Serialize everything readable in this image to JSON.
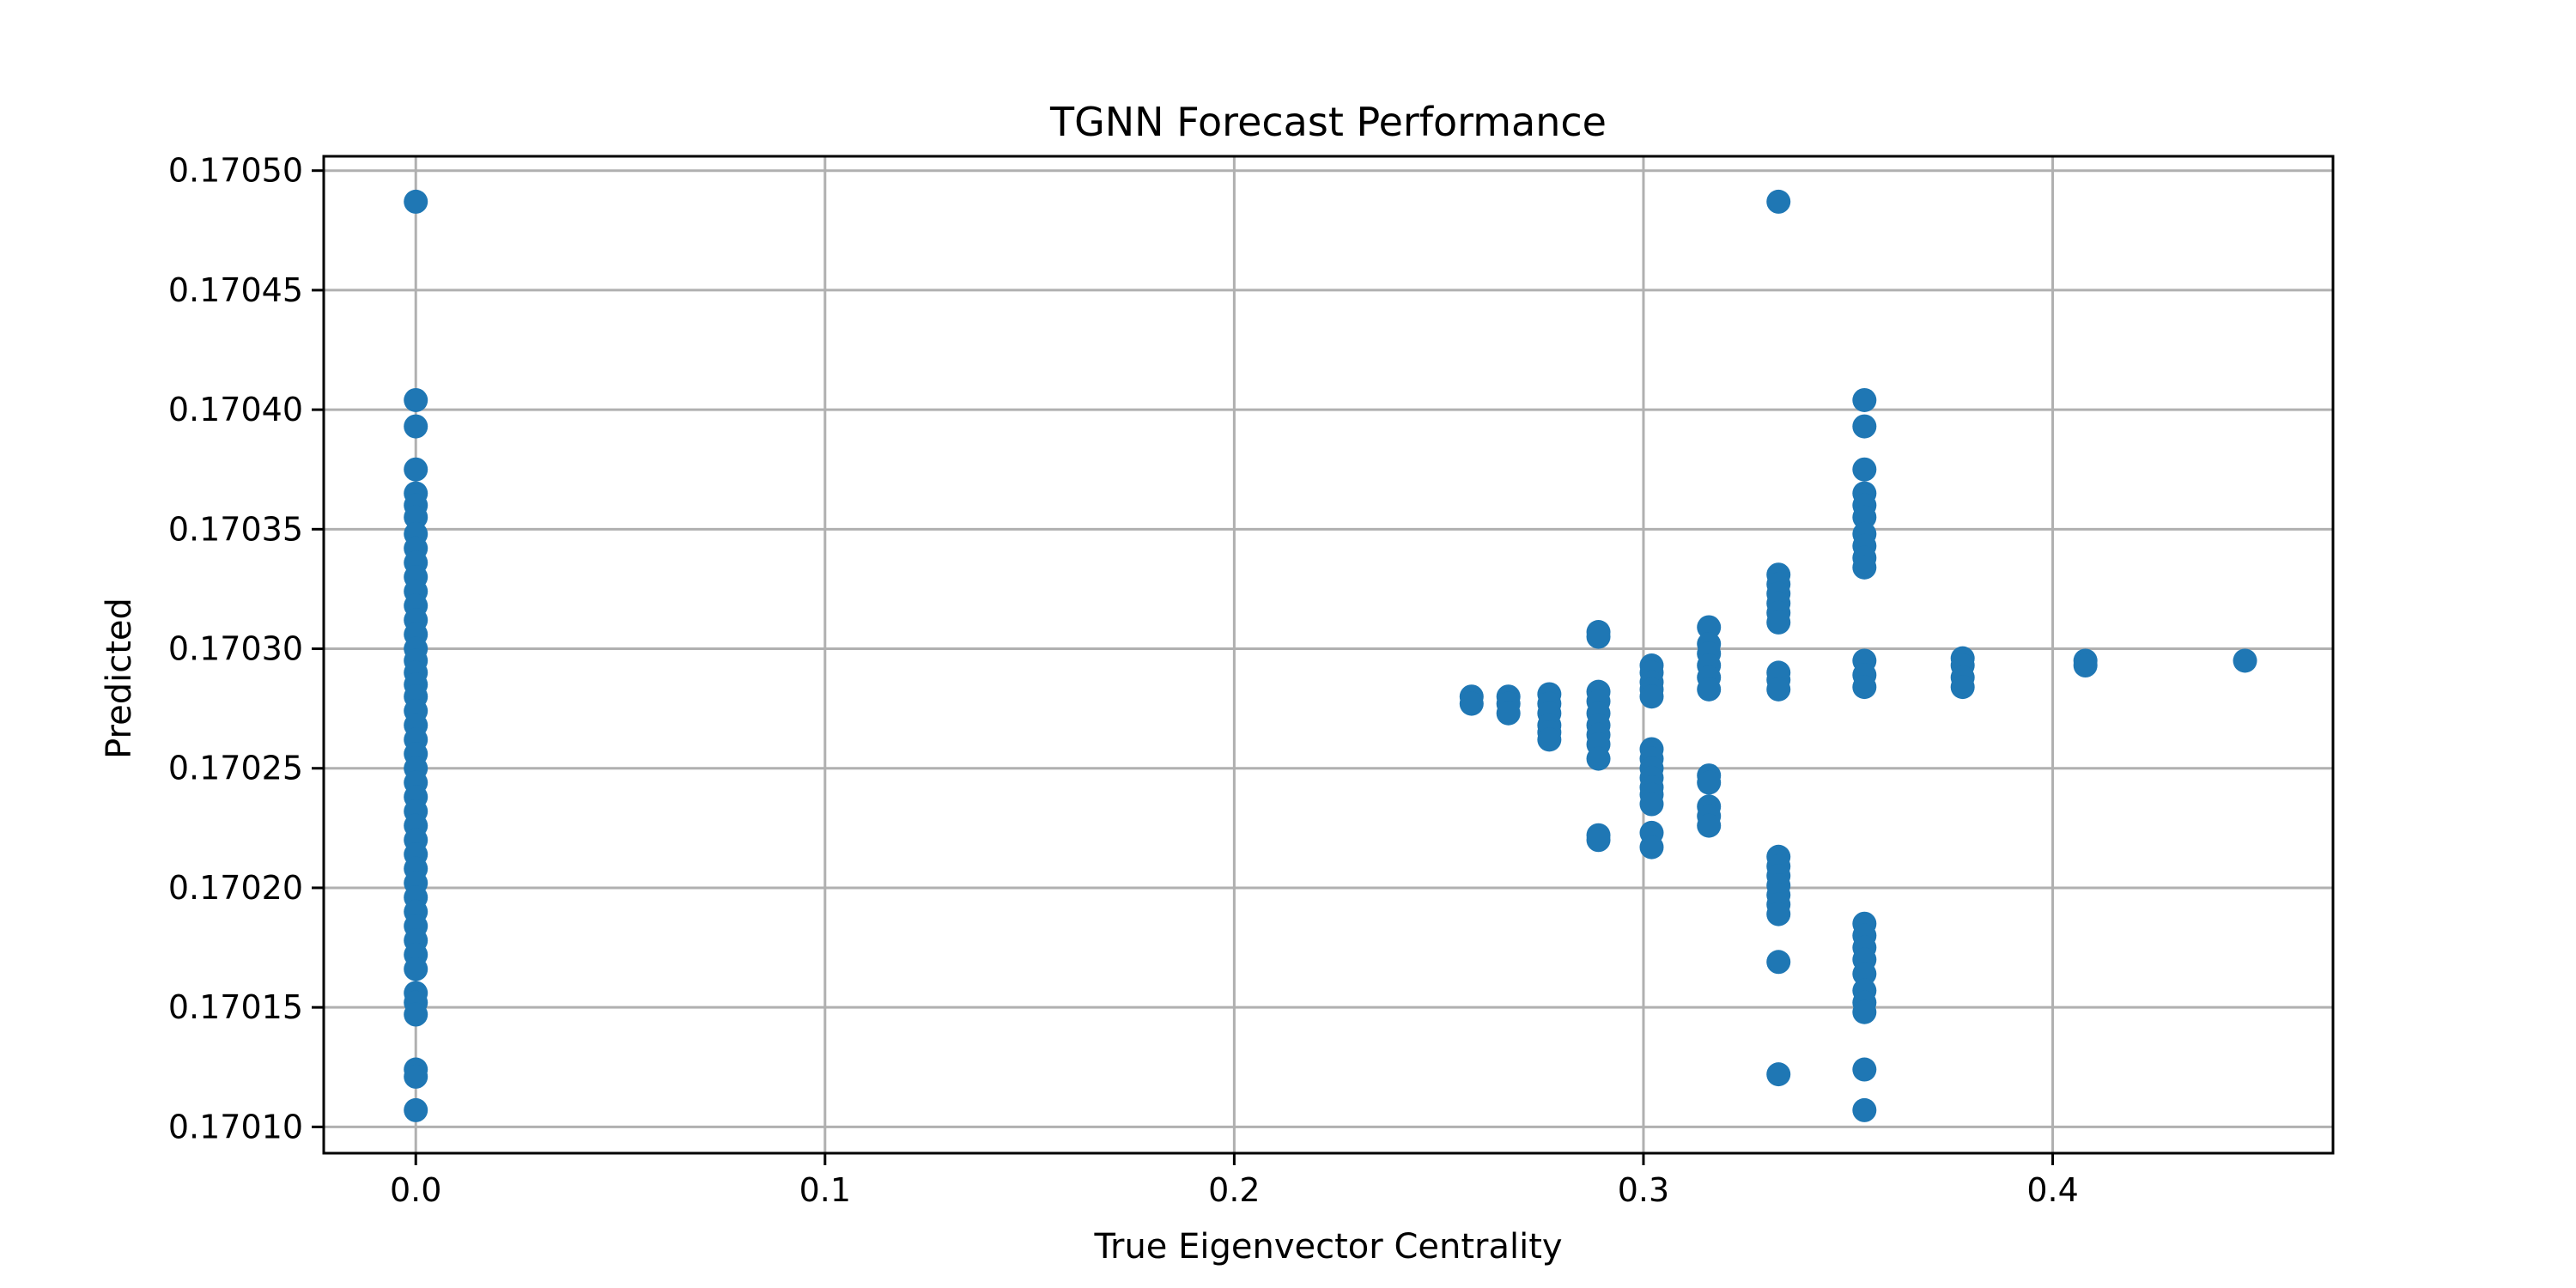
{
  "chart_data": {
    "type": "scatter",
    "title": "TGNN Forecast Performance",
    "xlabel": "True Eigenvector Centrality",
    "ylabel": "Predicted",
    "xlim": [
      -0.0225,
      0.4685
    ],
    "ylim": [
      0.170089,
      0.170506
    ],
    "xticks": [
      0.0,
      0.1,
      0.2,
      0.3,
      0.4
    ],
    "xtick_labels": [
      "0.0",
      "0.1",
      "0.2",
      "0.3",
      "0.4"
    ],
    "yticks": [
      0.1701,
      0.17015,
      0.1702,
      0.17025,
      0.1703,
      0.17035,
      0.1704,
      0.17045,
      0.1705
    ],
    "ytick_labels": [
      "0.17010",
      "0.17015",
      "0.17020",
      "0.17025",
      "0.17030",
      "0.17035",
      "0.17040",
      "0.17045",
      "0.17050"
    ],
    "grid": true,
    "color": "#1f77b4",
    "points": [
      [
        0.0,
        0.170487
      ],
      [
        0.0,
        0.170404
      ],
      [
        0.0,
        0.170393
      ],
      [
        0.0,
        0.170375
      ],
      [
        0.0,
        0.170365
      ],
      [
        0.0,
        0.17036
      ],
      [
        0.0,
        0.170355
      ],
      [
        0.0,
        0.170348
      ],
      [
        0.0,
        0.170342
      ],
      [
        0.0,
        0.170336
      ],
      [
        0.0,
        0.17033
      ],
      [
        0.0,
        0.170324
      ],
      [
        0.0,
        0.170318
      ],
      [
        0.0,
        0.170312
      ],
      [
        0.0,
        0.170306
      ],
      [
        0.0,
        0.1703
      ],
      [
        0.0,
        0.170295
      ],
      [
        0.0,
        0.17029
      ],
      [
        0.0,
        0.170285
      ],
      [
        0.0,
        0.17028
      ],
      [
        0.0,
        0.170274
      ],
      [
        0.0,
        0.170268
      ],
      [
        0.0,
        0.170262
      ],
      [
        0.0,
        0.170256
      ],
      [
        0.0,
        0.17025
      ],
      [
        0.0,
        0.170244
      ],
      [
        0.0,
        0.170238
      ],
      [
        0.0,
        0.170232
      ],
      [
        0.0,
        0.170226
      ],
      [
        0.0,
        0.17022
      ],
      [
        0.0,
        0.170214
      ],
      [
        0.0,
        0.170208
      ],
      [
        0.0,
        0.170202
      ],
      [
        0.0,
        0.170196
      ],
      [
        0.0,
        0.17019
      ],
      [
        0.0,
        0.170184
      ],
      [
        0.0,
        0.170178
      ],
      [
        0.0,
        0.170172
      ],
      [
        0.0,
        0.170166
      ],
      [
        0.0,
        0.170156
      ],
      [
        0.0,
        0.170152
      ],
      [
        0.0,
        0.170147
      ],
      [
        0.0,
        0.170124
      ],
      [
        0.0,
        0.170121
      ],
      [
        0.0,
        0.170107
      ],
      [
        0.258,
        0.17028
      ],
      [
        0.258,
        0.170277
      ],
      [
        0.267,
        0.17028
      ],
      [
        0.267,
        0.170277
      ],
      [
        0.267,
        0.170273
      ],
      [
        0.277,
        0.170281
      ],
      [
        0.277,
        0.170277
      ],
      [
        0.277,
        0.170273
      ],
      [
        0.277,
        0.170268
      ],
      [
        0.277,
        0.170265
      ],
      [
        0.277,
        0.170262
      ],
      [
        0.289,
        0.170307
      ],
      [
        0.289,
        0.170305
      ],
      [
        0.289,
        0.170282
      ],
      [
        0.289,
        0.170278
      ],
      [
        0.289,
        0.170273
      ],
      [
        0.289,
        0.170268
      ],
      [
        0.289,
        0.170264
      ],
      [
        0.289,
        0.17026
      ],
      [
        0.289,
        0.170254
      ],
      [
        0.289,
        0.170222
      ],
      [
        0.289,
        0.17022
      ],
      [
        0.302,
        0.170293
      ],
      [
        0.302,
        0.17029
      ],
      [
        0.302,
        0.170286
      ],
      [
        0.302,
        0.170283
      ],
      [
        0.302,
        0.17028
      ],
      [
        0.302,
        0.170258
      ],
      [
        0.302,
        0.170254
      ],
      [
        0.302,
        0.17025
      ],
      [
        0.302,
        0.170246
      ],
      [
        0.302,
        0.170242
      ],
      [
        0.302,
        0.170239
      ],
      [
        0.302,
        0.170235
      ],
      [
        0.302,
        0.170223
      ],
      [
        0.302,
        0.170217
      ],
      [
        0.316,
        0.170309
      ],
      [
        0.316,
        0.170302
      ],
      [
        0.316,
        0.170298
      ],
      [
        0.316,
        0.170293
      ],
      [
        0.316,
        0.170288
      ],
      [
        0.316,
        0.170283
      ],
      [
        0.316,
        0.170247
      ],
      [
        0.316,
        0.170244
      ],
      [
        0.316,
        0.170234
      ],
      [
        0.316,
        0.17023
      ],
      [
        0.316,
        0.170226
      ],
      [
        0.333,
        0.170487
      ],
      [
        0.333,
        0.170331
      ],
      [
        0.333,
        0.170327
      ],
      [
        0.333,
        0.170323
      ],
      [
        0.333,
        0.170319
      ],
      [
        0.333,
        0.170315
      ],
      [
        0.333,
        0.170311
      ],
      [
        0.333,
        0.17029
      ],
      [
        0.333,
        0.170287
      ],
      [
        0.333,
        0.170283
      ],
      [
        0.333,
        0.170213
      ],
      [
        0.333,
        0.170209
      ],
      [
        0.333,
        0.170205
      ],
      [
        0.333,
        0.170201
      ],
      [
        0.333,
        0.170197
      ],
      [
        0.333,
        0.170193
      ],
      [
        0.333,
        0.170189
      ],
      [
        0.333,
        0.170169
      ],
      [
        0.333,
        0.170122
      ],
      [
        0.354,
        0.170404
      ],
      [
        0.354,
        0.170393
      ],
      [
        0.354,
        0.170375
      ],
      [
        0.354,
        0.170365
      ],
      [
        0.354,
        0.17036
      ],
      [
        0.354,
        0.170355
      ],
      [
        0.354,
        0.170348
      ],
      [
        0.354,
        0.170343
      ],
      [
        0.354,
        0.170338
      ],
      [
        0.354,
        0.170334
      ],
      [
        0.354,
        0.170295
      ],
      [
        0.354,
        0.170289
      ],
      [
        0.354,
        0.170284
      ],
      [
        0.354,
        0.170185
      ],
      [
        0.354,
        0.17018
      ],
      [
        0.354,
        0.170175
      ],
      [
        0.354,
        0.17017
      ],
      [
        0.354,
        0.170164
      ],
      [
        0.354,
        0.170157
      ],
      [
        0.354,
        0.170152
      ],
      [
        0.354,
        0.170148
      ],
      [
        0.354,
        0.170124
      ],
      [
        0.354,
        0.170107
      ],
      [
        0.378,
        0.170296
      ],
      [
        0.378,
        0.170293
      ],
      [
        0.378,
        0.170288
      ],
      [
        0.378,
        0.170284
      ],
      [
        0.408,
        0.170295
      ],
      [
        0.408,
        0.170293
      ],
      [
        0.447,
        0.170295
      ]
    ]
  }
}
